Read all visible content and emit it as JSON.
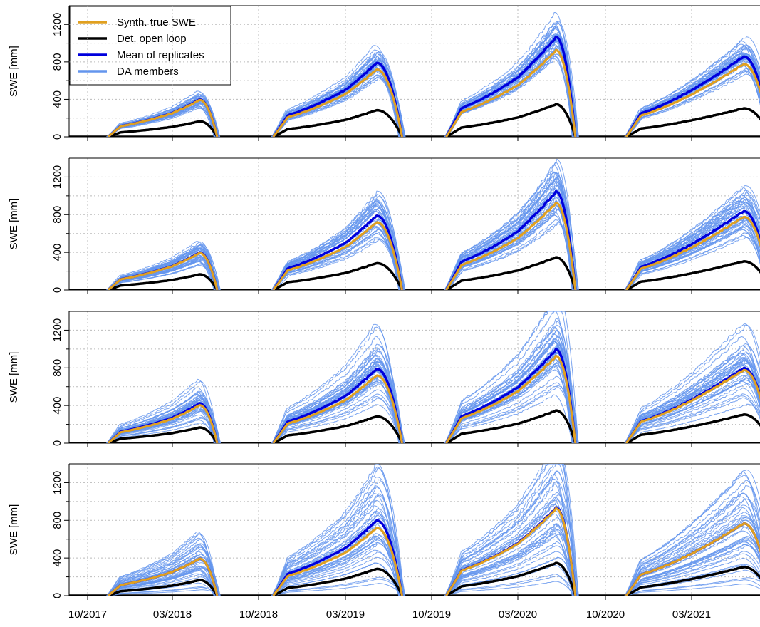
{
  "colors": {
    "true_swe": "#E0A020",
    "open_loop": "#000000",
    "mean": "#0000DD",
    "members": "#6495ED",
    "grid": "#bbbbbb"
  },
  "legend": {
    "placement": "top-left",
    "items": [
      {
        "label": "Synth. true SWE",
        "color_key": "true_swe"
      },
      {
        "label": "Det. open loop",
        "color_key": "open_loop"
      },
      {
        "label": "Mean of replicates",
        "color_key": "mean"
      },
      {
        "label": "DA members",
        "color_key": "members"
      }
    ]
  },
  "chart_data": [
    {
      "type": "line",
      "panel": 1,
      "ylabel": "SWE [mm]",
      "ylim": [
        0,
        1400
      ],
      "yticks": [
        "0",
        "400",
        "800",
        "1200"
      ],
      "grid": true,
      "member_spread": 0.12,
      "series": [
        {
          "name": "Synth. true SWE",
          "key": "true_swe",
          "peaks": [
            390,
            720,
            920,
            780
          ]
        },
        {
          "name": "Det. open loop",
          "key": "open_loop",
          "peaks": [
            165,
            285,
            345,
            305
          ]
        },
        {
          "name": "Mean of replicates",
          "key": "mean",
          "peaks": [
            395,
            790,
            1060,
            860
          ]
        }
      ]
    },
    {
      "type": "line",
      "panel": 2,
      "ylabel": "SWE [mm]",
      "ylim": [
        0,
        1400
      ],
      "yticks": [
        "0",
        "400",
        "800",
        "1200"
      ],
      "grid": true,
      "member_spread": 0.2,
      "series": [
        {
          "name": "Synth. true SWE",
          "key": "true_swe",
          "peaks": [
            390,
            720,
            920,
            780
          ]
        },
        {
          "name": "Det. open loop",
          "key": "open_loop",
          "peaks": [
            165,
            285,
            345,
            305
          ]
        },
        {
          "name": "Mean of replicates",
          "key": "mean",
          "peaks": [
            395,
            790,
            1040,
            840
          ]
        }
      ]
    },
    {
      "type": "line",
      "panel": 3,
      "ylabel": "SWE [mm]",
      "ylim": [
        0,
        1400
      ],
      "yticks": [
        "0",
        "400",
        "800",
        "1200"
      ],
      "grid": true,
      "member_spread": 0.3,
      "series": [
        {
          "name": "Synth. true SWE",
          "key": "true_swe",
          "peaks": [
            400,
            720,
            920,
            780
          ]
        },
        {
          "name": "Det. open loop",
          "key": "open_loop",
          "peaks": [
            165,
            285,
            345,
            305
          ]
        },
        {
          "name": "Mean of replicates",
          "key": "mean",
          "peaks": [
            420,
            790,
            990,
            800
          ]
        }
      ]
    },
    {
      "type": "line",
      "panel": 4,
      "ylabel": "SWE [mm]",
      "ylim": [
        0,
        1400
      ],
      "yticks": [
        "0",
        "400",
        "800",
        "1200"
      ],
      "grid": true,
      "member_spread": 0.5,
      "series": [
        {
          "name": "Synth. true SWE",
          "key": "true_swe",
          "peaks": [
            390,
            720,
            920,
            770
          ]
        },
        {
          "name": "Det. open loop",
          "key": "open_loop",
          "peaks": [
            165,
            285,
            345,
            305
          ]
        },
        {
          "name": "Mean of replicates",
          "key": "mean",
          "peaks": [
            390,
            800,
            930,
            770
          ]
        }
      ]
    }
  ],
  "xaxis": {
    "tick_labels": [
      "10/2017",
      "03/2018",
      "10/2018",
      "03/2019",
      "10/2019",
      "03/2020",
      "10/2020",
      "03/2021"
    ],
    "seasons": [
      {
        "onset": 2017.85,
        "peak": 2018.35,
        "melt_out": 2018.47
      },
      {
        "onset": 2018.82,
        "peak": 2019.38,
        "melt_out": 2019.55
      },
      {
        "onset": 2019.82,
        "peak": 2020.42,
        "melt_out": 2020.55
      },
      {
        "onset": 2020.85,
        "peak": 2021.42,
        "melt_out": 2021.55
      }
    ]
  }
}
